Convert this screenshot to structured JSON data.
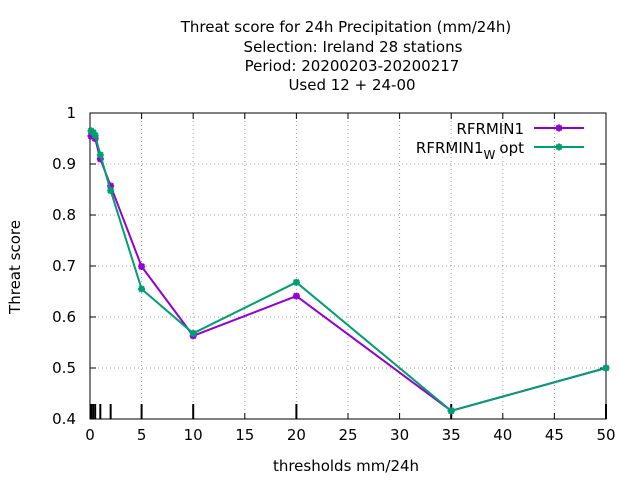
{
  "chart_data": {
    "type": "line",
    "title_lines": [
      "Threat score  for 24h Precipitation (mm/24h)",
      "Selection: Ireland      28 stations",
      "Period: 20200203-20200217",
      "Used  12 + 24-00"
    ],
    "xlabel": "thresholds mm/24h",
    "ylabel": "Threat score",
    "xlim": [
      0,
      50
    ],
    "ylim": [
      0.4,
      1
    ],
    "x_ticks": [
      0,
      5,
      10,
      15,
      20,
      25,
      30,
      35,
      40,
      45,
      50
    ],
    "y_ticks": [
      0.4,
      0.5,
      0.6,
      0.7,
      0.8,
      0.9,
      1
    ],
    "y_tick_labels": [
      "0.4",
      "0.5",
      "0.6",
      "0.7",
      "0.8",
      "0.9",
      "1"
    ],
    "grid": true,
    "legend_position": "top-right",
    "threshold_marks": [
      0.1,
      0.3,
      0.5,
      1,
      2,
      5,
      10,
      20,
      35,
      50
    ],
    "series": [
      {
        "name": "RFRMIN1",
        "color": "#9400d3",
        "x": [
          0.1,
          0.3,
          0.5,
          1,
          2,
          5,
          10,
          20,
          35,
          50
        ],
        "y": [
          0.955,
          0.956,
          0.95,
          0.91,
          0.857,
          0.699,
          0.563,
          0.641,
          0.416,
          0.5
        ]
      },
      {
        "name": "RFRMIN1",
        "name_subscript": "W",
        "name_suffix": "opt",
        "color": "#009e73",
        "x": [
          0.1,
          0.3,
          0.5,
          1,
          2,
          5,
          10,
          20,
          35,
          50
        ],
        "y": [
          0.965,
          0.962,
          0.956,
          0.918,
          0.848,
          0.655,
          0.568,
          0.668,
          0.416,
          0.5
        ]
      }
    ]
  }
}
